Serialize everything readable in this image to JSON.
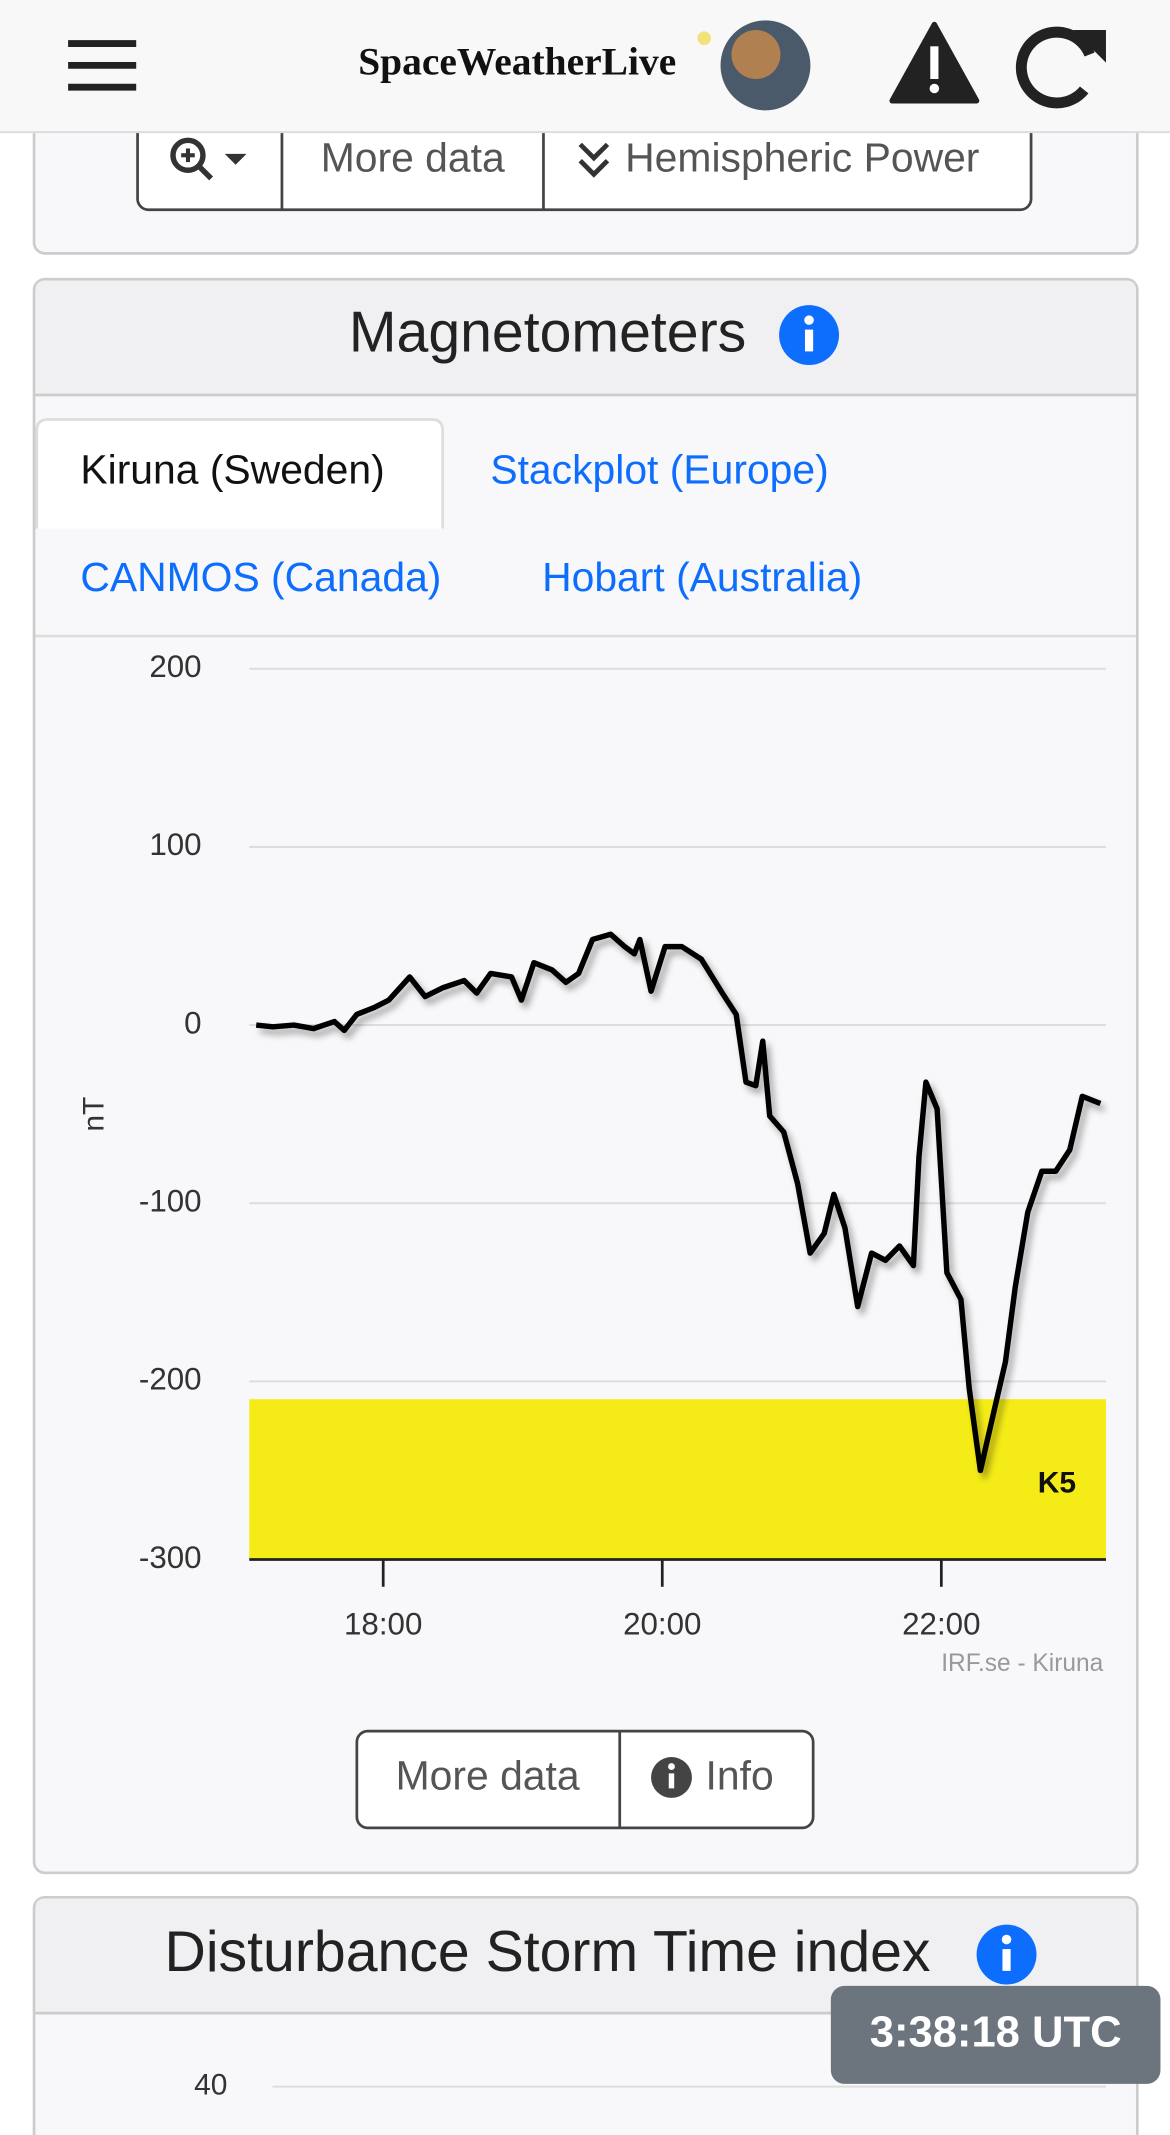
{
  "header": {
    "brand": "SpaceWeatherLive"
  },
  "toolbar": {
    "buttons": [
      "More data",
      "Hemispheric Power"
    ]
  },
  "magnetometers": {
    "title": "Magnetometers",
    "tabs": [
      "Kiruna (Sweden)",
      "Stackplot (Europe)",
      "CANMOS (Canada)",
      "Hobart (Australia)"
    ],
    "buttons": [
      "More data",
      "Info"
    ]
  },
  "chart_data": {
    "type": "line",
    "ylabel": "nT",
    "credit": "IRF.se - Kiruna",
    "color": "#000000",
    "x": [
      17.09,
      17.21,
      17.36,
      17.5,
      17.65,
      17.72,
      17.81,
      17.94,
      18.04,
      18.19,
      18.3,
      18.43,
      18.58,
      18.67,
      18.77,
      18.92,
      18.99,
      19.08,
      19.21,
      19.31,
      19.4,
      19.5,
      19.63,
      19.73,
      19.8,
      19.84,
      19.92,
      20.02,
      20.14,
      20.28,
      20.43,
      20.53,
      20.6,
      20.67,
      20.72,
      20.77,
      20.87,
      20.97,
      21.06,
      21.16,
      21.23,
      21.31,
      21.4,
      21.5,
      21.6,
      21.7,
      21.8,
      21.84,
      21.89,
      21.97,
      22.04,
      22.14,
      22.2,
      22.28,
      22.38,
      22.46,
      22.53,
      22.62,
      22.72,
      22.82,
      22.92,
      23.01,
      23.14
    ],
    "values": [
      0,
      -1,
      0,
      -2,
      2,
      -3,
      6,
      10,
      14,
      27,
      16,
      21,
      25,
      18,
      29,
      27,
      14,
      35,
      31,
      24,
      29,
      48,
      51,
      44,
      40,
      48,
      19,
      44,
      44,
      37,
      18,
      6,
      -32,
      -34,
      -9,
      -51,
      -60,
      -89,
      -128,
      -117,
      -95,
      -114,
      -158,
      -128,
      -132,
      -124,
      -135,
      -74,
      -32,
      -47,
      -139,
      -154,
      -204,
      -250,
      -216,
      -189,
      -147,
      -105,
      -82,
      -82,
      -70,
      -40,
      -44
    ],
    "xlim": [
      17.04,
      23.18
    ],
    "xticks": [
      {
        "value": 18,
        "label": "18:00"
      },
      {
        "value": 20,
        "label": "20:00"
      },
      {
        "value": 22,
        "label": "22:00"
      }
    ],
    "ylim": [
      -300,
      200
    ],
    "yticks": [
      200,
      100,
      0,
      -100,
      -200,
      -300
    ],
    "grid": true,
    "band": {
      "from": -300,
      "to": -210,
      "label": "K5",
      "color": "#f5ec17"
    }
  },
  "dst": {
    "title": "Disturbance Storm Time index",
    "yticks": [
      40
    ]
  },
  "clock": "3:38:18 UTC"
}
